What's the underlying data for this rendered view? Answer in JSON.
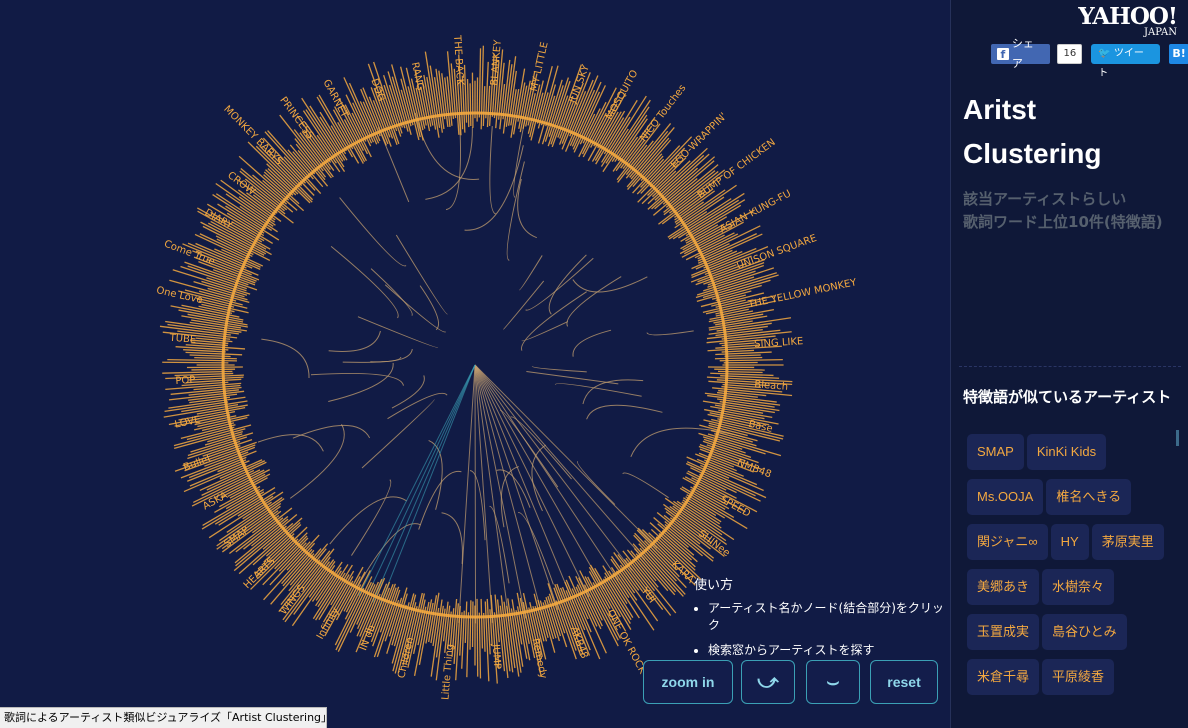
{
  "brand": {
    "name": "YAHOO!",
    "sub": "JAPAN"
  },
  "share": {
    "facebook_label": "シェア",
    "facebook_count": "16",
    "twitter_label": "ツイート",
    "hatena_label": "B!"
  },
  "title_line1": "Aritst",
  "title_line2": "Clustering",
  "desc_line1": "該当アーティストらしい",
  "desc_line2": "歌詞ワード上位10件(特徴語)",
  "similar_title": "特徴語が似ているアーティスト",
  "similar_artists": [
    "SMAP",
    "KinKi Kids",
    "Ms.OOJA",
    "椎名へきる",
    "関ジャニ∞",
    "HY",
    "茅原実里",
    "美郷あき",
    "水樹奈々",
    "玉置成実",
    "島谷ひとみ",
    "米倉千尋",
    "平原綾香"
  ],
  "usage": {
    "heading": "使い方",
    "items": [
      "アーティスト名かノード(結合部分)をクリック",
      "検索窓からアーティストを探す"
    ]
  },
  "controls": {
    "zoom_in": "zoom in",
    "rotate_left": "⤻",
    "rotate_right": "⌣",
    "reset": "reset"
  },
  "status_bar": "歌詞によるアーティスト類似ビジュアライズ「Artist Clustering」",
  "artist_labels": [
    "DOG",
    "RANG",
    "THE BACK",
    "BLANKEY",
    "MY LITTLE",
    "JUN SKY",
    "MOSQUITO",
    "NICO Touches",
    "EGO-WRAPPIN'",
    "BUMP OF CHICKEN",
    "ASIAN KUNG-FU",
    "UNISON SQUARE",
    "THE YELLOW MONKEY",
    "SING LIKE",
    "Bleach",
    "Base",
    "NMB48",
    "SPEED",
    "SHINee",
    "KARA",
    "YUI",
    "ONE OK ROCK",
    "AKB48",
    "Remedy",
    "JUMP",
    "Little Thing",
    "Children",
    "IN db",
    "Infinity",
    "WINGS",
    "HEARTS",
    "SMAP",
    "ASKA",
    "Bullet",
    "LOVE",
    "POP",
    "TUBE",
    "One Love",
    "Come True",
    "DIARY",
    "CROW",
    "MONKEY BABYS",
    "PRINCESS",
    "GARNET"
  ],
  "colors": {
    "background": "#111b45",
    "label": "#f3a840",
    "branch": "#c4a070",
    "accent": "#3ba0b5"
  }
}
